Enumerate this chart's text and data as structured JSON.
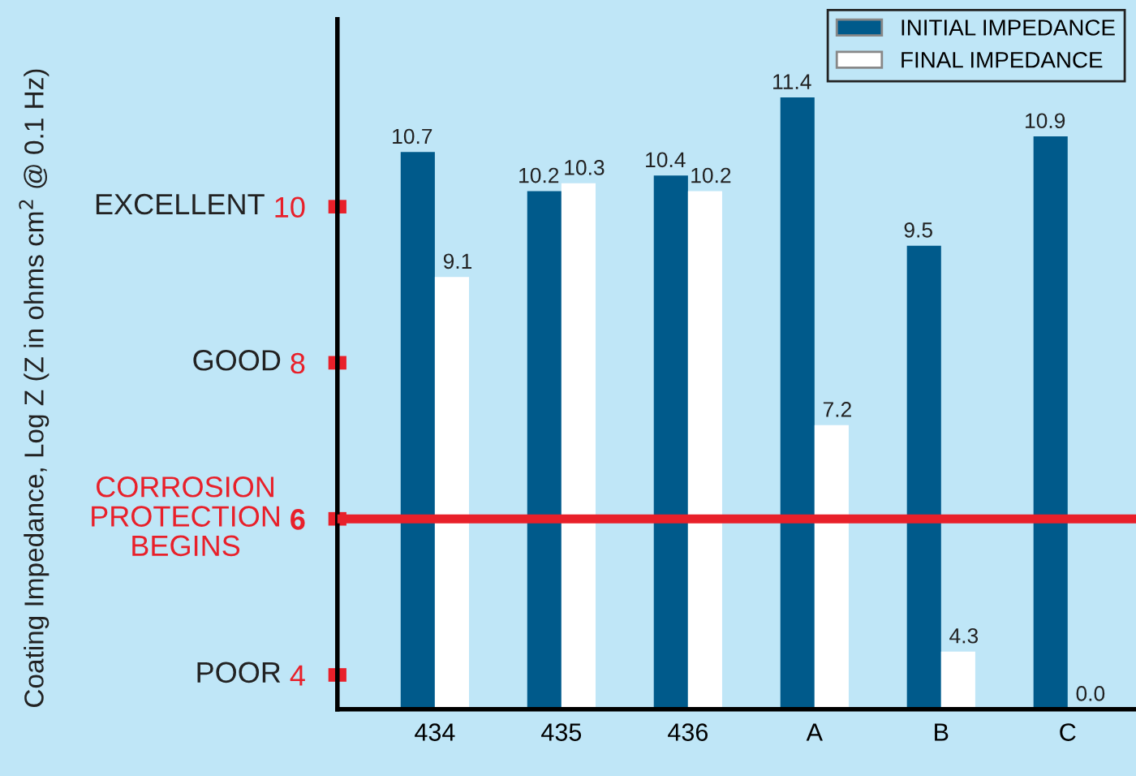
{
  "chart_data": {
    "type": "bar",
    "categories": [
      "434",
      "435",
      "436",
      "A",
      "B",
      "C"
    ],
    "series": [
      {
        "name": "INITIAL IMPEDANCE",
        "color": "#005a8b",
        "values": [
          10.7,
          10.2,
          10.4,
          11.4,
          9.5,
          10.9
        ],
        "value_labels": [
          "10.7",
          "10.2",
          "10.4",
          "11.4",
          "9.5",
          "10.9"
        ]
      },
      {
        "name": "FINAL IMPEDANCE",
        "color": "#ffffff",
        "values": [
          9.1,
          10.3,
          10.2,
          7.2,
          4.3,
          null
        ],
        "value_labels": [
          "9.1",
          "10.3",
          "10.2",
          "7.2",
          "4.3",
          "0.0"
        ]
      }
    ],
    "ylim": [
      3.56,
      12.4
    ],
    "yticks": [
      4,
      6,
      8,
      10
    ],
    "annotations": [
      "POOR",
      "GOOD",
      "EXCELLENT",
      "Coating Impedance, Log Z (Z in ohms cm$^{2}$ @ 0.1 Hz)"
    ],
    "ref_lines": [
      {
        "axis": "y",
        "value": 6,
        "color": "#e8202a",
        "label": "CORROSION\nPROTECTION\nBEGINS"
      }
    ],
    "grid": false,
    "legend": "top right"
  }
}
